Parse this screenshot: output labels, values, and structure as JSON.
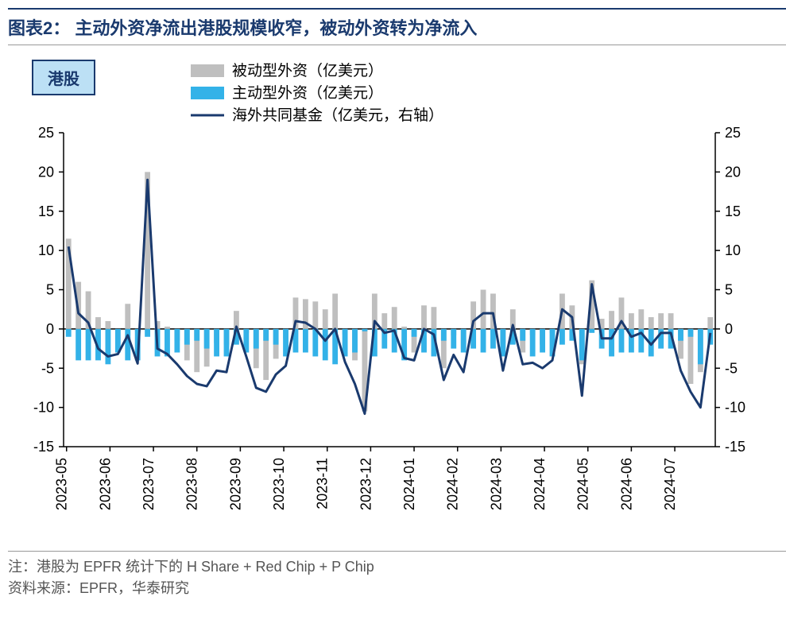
{
  "title": "图表2：  主动外资净流出港股规模收窄，被动外资转为净流入",
  "badge": "港股",
  "legend": {
    "passive": "被动型外资（亿美元）",
    "active": "主动型外资（亿美元）",
    "fund": "海外共同基金（亿美元，右轴）"
  },
  "footer": {
    "note": "注：港股为 EPFR 统计下的 H Share + Red Chip + P Chip",
    "source": "资料来源：EPFR，华泰研究"
  },
  "chart": {
    "type": "bar+line",
    "colors": {
      "passive_bar": "#bfbfbf",
      "active_bar": "#33b2e8",
      "line": "#1a3a6e",
      "axis": "#000000",
      "tick": "#000000",
      "background": "#ffffff"
    },
    "line_width": 3,
    "bar_width": 0.55,
    "y_axis": {
      "min": -15,
      "max": 25,
      "step": 5
    },
    "y2_axis": {
      "min": -15,
      "max": 25,
      "step": 5
    },
    "x_labels": [
      "2023-05",
      "2023-06",
      "2023-07",
      "2023-08",
      "2023-09",
      "2023-10",
      "2023-11",
      "2023-12",
      "2024-01",
      "2024-02",
      "2024-03",
      "2024-04",
      "2024-05",
      "2024-06",
      "2024-07"
    ],
    "label_fontsize": 18,
    "series_passive": [
      11.5,
      6.0,
      4.8,
      1.5,
      1.0,
      -0.2,
      3.2,
      -0.3,
      20.0,
      1.0,
      0.3,
      -1.5,
      -4.0,
      -5.5,
      -4.8,
      -1.8,
      -2.0,
      2.3,
      -0.5,
      -5.0,
      -6.5,
      -3.8,
      -1.2,
      4.0,
      3.8,
      3.5,
      2.5,
      4.5,
      -0.7,
      -4.0,
      -10.5,
      4.5,
      2.0,
      2.8,
      0.3,
      -3.0,
      3.0,
      2.8,
      -5.0,
      -0.8,
      -2.5,
      3.5,
      5.0,
      4.5,
      -1.8,
      2.5,
      -3.0,
      -0.8,
      -2.0,
      -0.5,
      4.5,
      3.0,
      -4.5,
      6.2,
      1.3,
      2.3,
      4.0,
      2.0,
      2.5,
      1.5,
      2.0,
      2.0,
      -3.8,
      -7.0,
      -5.5,
      1.5
    ],
    "series_active": [
      -1.0,
      -4.0,
      -4.0,
      -4.0,
      -4.5,
      -3.0,
      -4.0,
      -4.0,
      -1.0,
      -3.5,
      -3.5,
      -3.0,
      -2.0,
      -1.5,
      -2.5,
      -3.5,
      -3.5,
      -2.0,
      -3.0,
      -2.5,
      -1.5,
      -2.0,
      -3.5,
      -3.0,
      -3.0,
      -3.5,
      -4.0,
      -4.5,
      -3.5,
      -3.0,
      -0.3,
      -3.5,
      -2.5,
      -3.0,
      -4.0,
      -1.0,
      -3.0,
      -3.5,
      -1.5,
      -2.5,
      -3.0,
      -2.5,
      -3.0,
      -2.5,
      -3.5,
      -2.0,
      -1.5,
      -3.5,
      -3.0,
      -3.5,
      -2.0,
      -1.5,
      -4.0,
      -0.5,
      -2.5,
      -3.5,
      -3.0,
      -3.0,
      -3.0,
      -3.5,
      -2.5,
      -2.5,
      -1.5,
      -1.0,
      -4.5,
      -2.0
    ],
    "series_line": [
      10.5,
      2.0,
      0.8,
      -2.5,
      -3.5,
      -3.2,
      -0.8,
      -4.4,
      19.0,
      -2.5,
      -3.2,
      -4.5,
      -6.0,
      -7.0,
      -7.3,
      -5.3,
      -5.5,
      0.3,
      -3.5,
      -7.5,
      -8.0,
      -5.8,
      -4.7,
      1.0,
      0.8,
      0.0,
      -1.5,
      0.0,
      -4.2,
      -7.0,
      -10.8,
      1.0,
      -0.5,
      -0.2,
      -3.7,
      -4.0,
      0.0,
      -0.7,
      -6.5,
      -3.3,
      -5.5,
      1.0,
      2.0,
      2.0,
      -5.3,
      0.5,
      -4.5,
      -4.3,
      -5.0,
      -4.0,
      2.5,
      1.5,
      -8.5,
      5.7,
      -1.2,
      -1.2,
      1.0,
      -1.0,
      -0.5,
      -2.0,
      -0.5,
      -0.5,
      -5.3,
      -8.0,
      -10.0,
      -0.5
    ]
  }
}
